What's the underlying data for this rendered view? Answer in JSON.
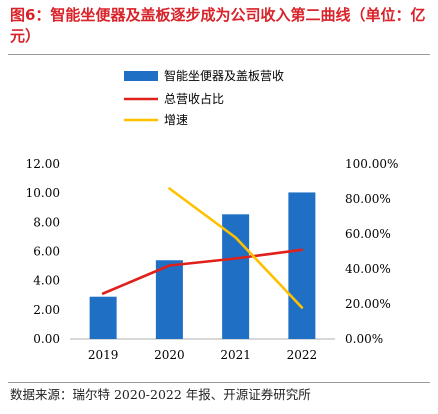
{
  "title": "图6：智能坐便器及盖板逐步成为公司收入第二曲线（单位：亿元）",
  "source": "数据来源：瑞尔特 2020-2022 年报、开源证券研究所",
  "colors": {
    "title": "#d8232a",
    "bar": "#1f6fc5",
    "share_line": "#e0201b",
    "growth_line": "#ffc000"
  },
  "chart_data": {
    "type": "bar",
    "categories": [
      "2019",
      "2020",
      "2021",
      "2022"
    ],
    "series": [
      {
        "name": "智能坐便器及盖板营收",
        "type": "bar",
        "axis": "left",
        "values": [
          2.9,
          5.4,
          8.55,
          10.05
        ]
      },
      {
        "name": "总营收占比",
        "type": "line",
        "axis": "right",
        "values": [
          26.0,
          42.0,
          46.0,
          51.0
        ]
      },
      {
        "name": "增速",
        "type": "line",
        "axis": "right",
        "values": [
          null,
          86.0,
          58.0,
          18.0
        ]
      }
    ],
    "ylim_left": [
      0,
      12
    ],
    "yticks_left": [
      "0.00",
      "2.00",
      "4.00",
      "6.00",
      "8.00",
      "10.00",
      "12.00"
    ],
    "ylim_right": [
      0,
      100
    ],
    "yticks_right": [
      "0.00%",
      "20.00%",
      "40.00%",
      "60.00%",
      "80.00%",
      "100.00%"
    ],
    "legend_position": "top-center",
    "grid": false
  }
}
